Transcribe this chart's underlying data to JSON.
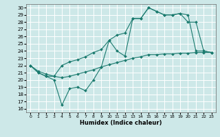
{
  "xlabel": "Humidex (Indice chaleur)",
  "bg_color": "#cde8e8",
  "grid_color": "#ffffff",
  "line_color": "#1a7a6e",
  "xlim": [
    -0.5,
    23.5
  ],
  "ylim": [
    15.5,
    30.5
  ],
  "xticks": [
    0,
    1,
    2,
    3,
    4,
    5,
    6,
    7,
    8,
    9,
    10,
    11,
    12,
    13,
    14,
    15,
    16,
    17,
    18,
    19,
    20,
    21,
    22,
    23
  ],
  "yticks": [
    16,
    17,
    18,
    19,
    20,
    21,
    22,
    23,
    24,
    25,
    26,
    27,
    28,
    29,
    30
  ],
  "line1_x": [
    0,
    1,
    2,
    3,
    4,
    5,
    6,
    7,
    8,
    9,
    10,
    11,
    12,
    13,
    14,
    15,
    16,
    17,
    18,
    19,
    20,
    21,
    22,
    23
  ],
  "line1_y": [
    22,
    21,
    20.5,
    20,
    16.5,
    18.8,
    19.0,
    18.5,
    20.0,
    21.8,
    25.5,
    24.0,
    23.3,
    28.5,
    28.5,
    30.0,
    29.5,
    29.0,
    29.0,
    29.2,
    28.0,
    28.0,
    24.0,
    23.8
  ],
  "line2_x": [
    0,
    1,
    2,
    3,
    4,
    5,
    6,
    7,
    8,
    9,
    10,
    11,
    12,
    13,
    14,
    15,
    16,
    17,
    18,
    19,
    20,
    21,
    22,
    23
  ],
  "line2_y": [
    22,
    21,
    20.5,
    20.5,
    22.0,
    22.5,
    22.8,
    23.2,
    23.8,
    24.2,
    25.5,
    26.2,
    26.5,
    28.5,
    28.5,
    30.0,
    29.5,
    29.0,
    29.0,
    29.2,
    29.0,
    24.0,
    24.0,
    23.8
  ],
  "line3_x": [
    0,
    1,
    2,
    3,
    4,
    5,
    6,
    7,
    8,
    9,
    10,
    11,
    12,
    13,
    14,
    15,
    16,
    17,
    18,
    19,
    20,
    21,
    22,
    23
  ],
  "line3_y": [
    22.0,
    21.2,
    20.8,
    20.5,
    20.3,
    20.5,
    20.8,
    21.1,
    21.4,
    21.8,
    22.1,
    22.4,
    22.7,
    23.0,
    23.2,
    23.5,
    23.5,
    23.6,
    23.6,
    23.7,
    23.7,
    23.8,
    23.8,
    23.8
  ]
}
